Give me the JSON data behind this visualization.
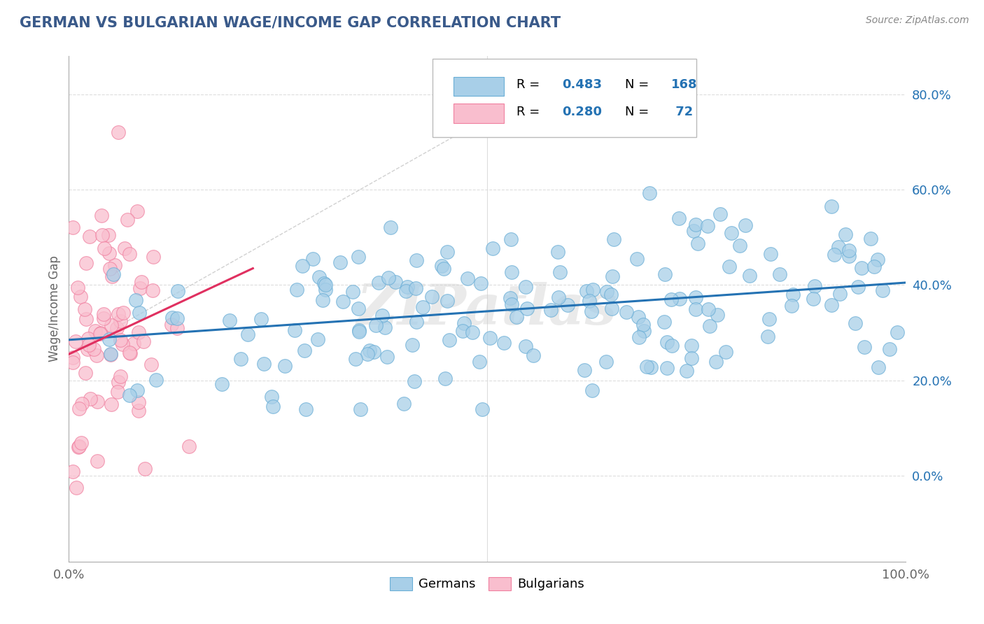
{
  "title": "GERMAN VS BULGARIAN WAGE/INCOME GAP CORRELATION CHART",
  "source": "Source: ZipAtlas.com",
  "ylabel": "Wage/Income Gap",
  "yticks_labels": [
    "0.0%",
    "20.0%",
    "40.0%",
    "60.0%",
    "80.0%"
  ],
  "yticks_vals": [
    0.0,
    0.2,
    0.4,
    0.6,
    0.8
  ],
  "xlim": [
    0.0,
    1.0
  ],
  "ylim": [
    -0.18,
    0.88
  ],
  "blue_color": "#a8cfe8",
  "blue_edge_color": "#6aaed6",
  "pink_color": "#f9bece",
  "pink_edge_color": "#f080a0",
  "blue_line_color": "#2472b3",
  "pink_line_color": "#e03060",
  "blue_R": 0.483,
  "blue_N": 168,
  "pink_R": 0.28,
  "pink_N": 72,
  "title_color": "#3a5a8a",
  "title_fontsize": 15,
  "watermark": "ZIPatlas",
  "grid_color": "#dddddd",
  "ref_line_color": "#cccccc",
  "legend_text_color": "#2472b3",
  "blue_line_y0": 0.285,
  "blue_line_y1": 0.405,
  "pink_line_x0": 0.0,
  "pink_line_x1": 0.22,
  "pink_line_y0": 0.255,
  "pink_line_y1": 0.435,
  "ref_line_x0": 0.0,
  "ref_line_x1": 0.58,
  "ref_line_y0": 0.255,
  "ref_line_y1": 0.83
}
